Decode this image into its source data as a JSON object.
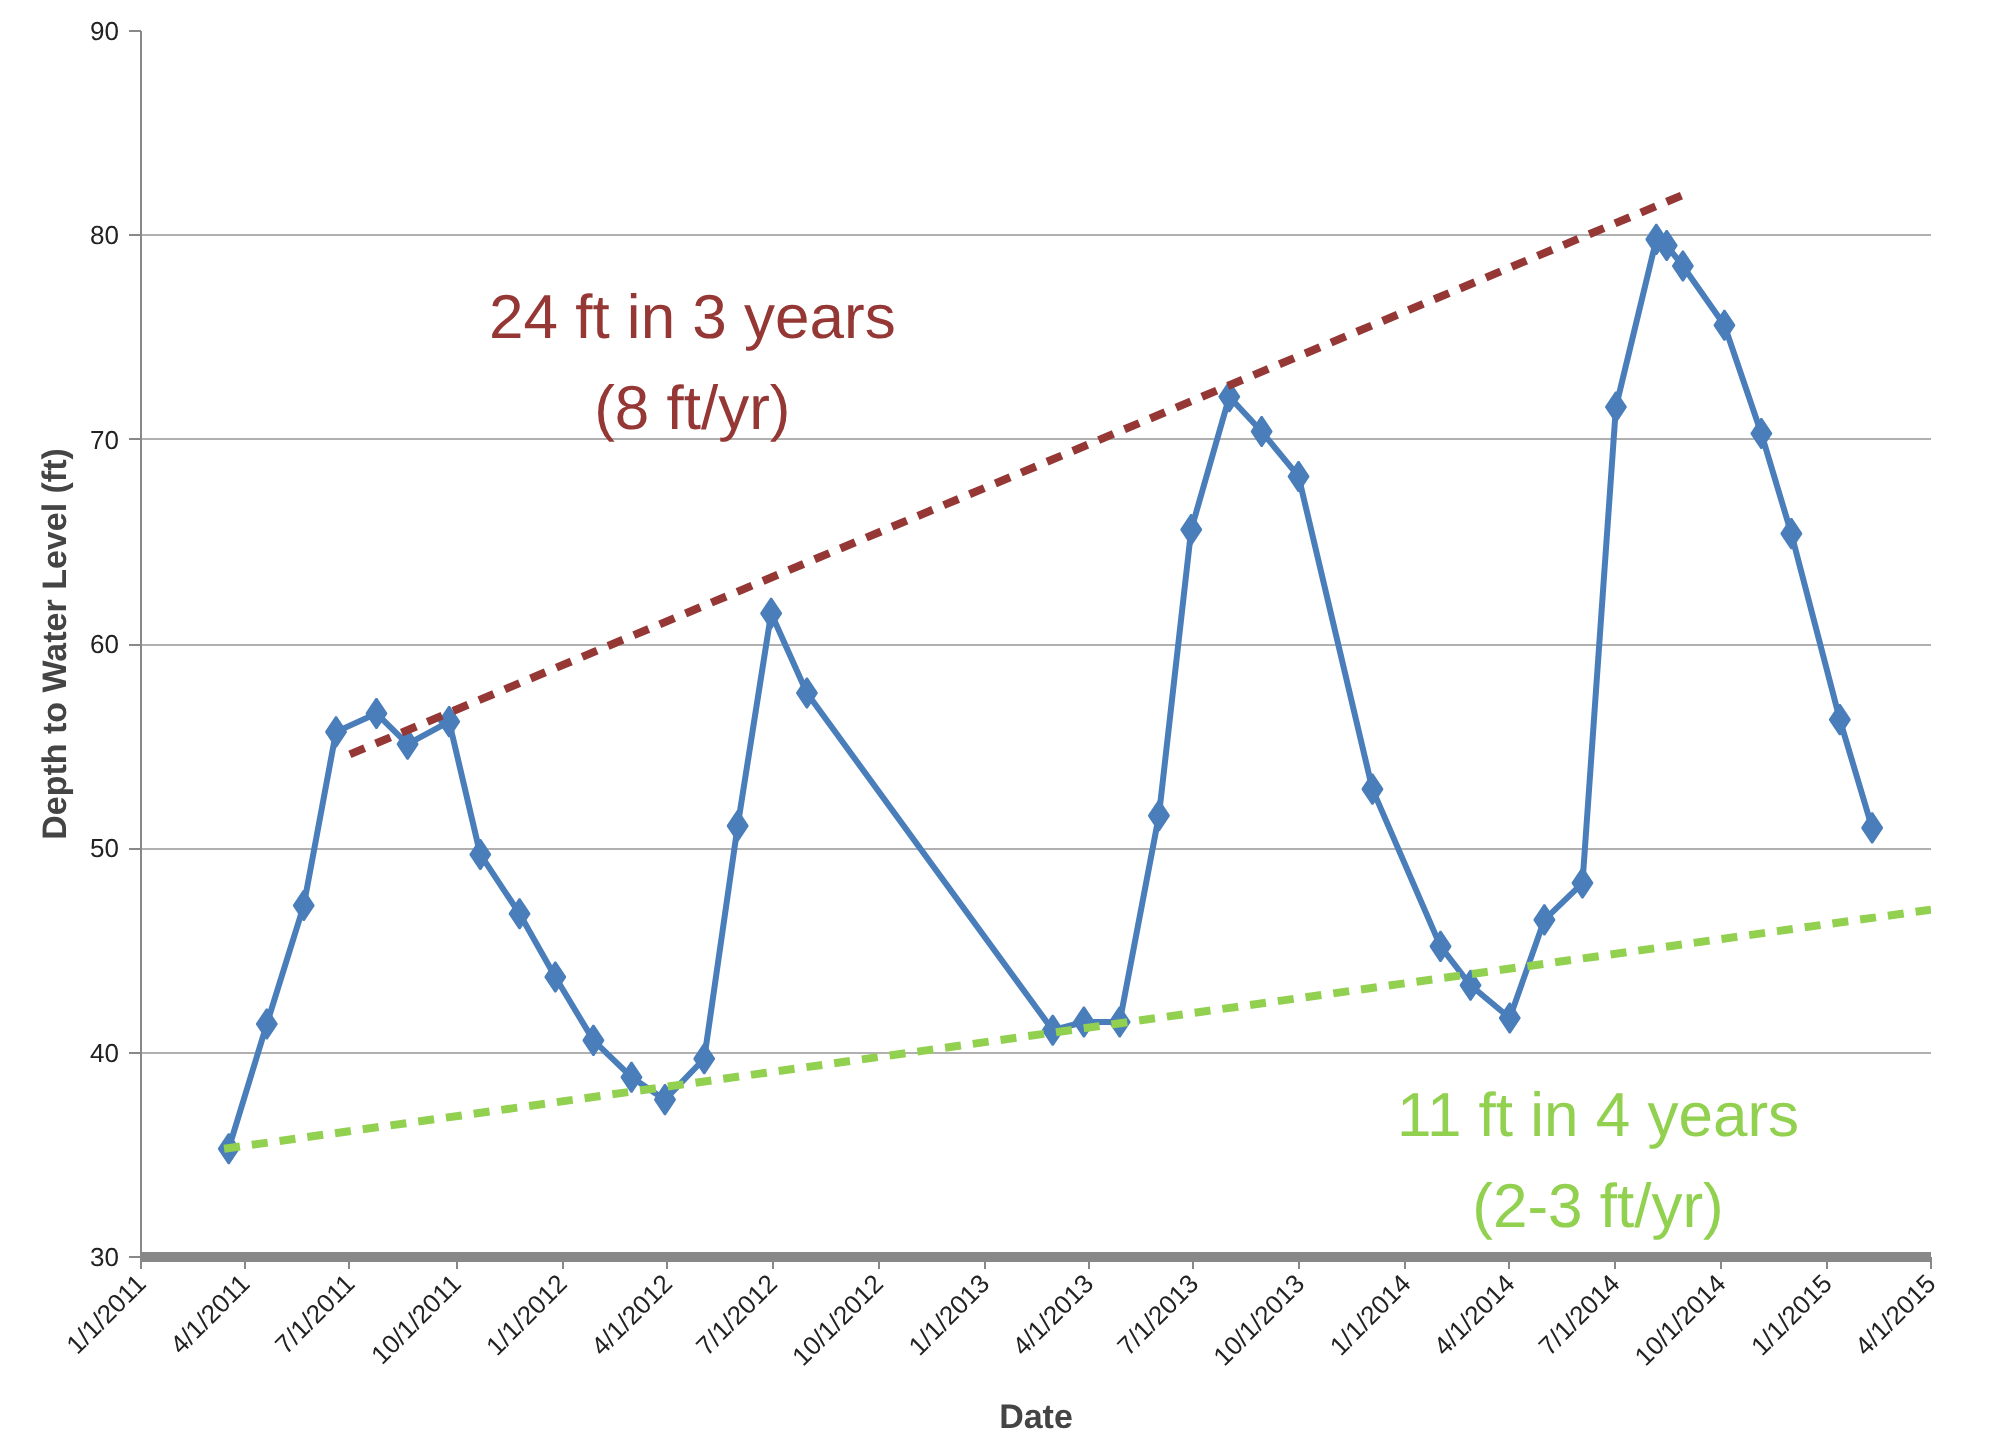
{
  "chart_data": {
    "type": "line",
    "xlabel": "Date",
    "ylabel": "Depth to Water Level (ft)",
    "xlim": [
      "2011-01-01",
      "2015-04-01"
    ],
    "xticks": [
      {
        "value": "2011-01-01",
        "label": "1/1/2011"
      },
      {
        "value": "2011-04-01",
        "label": "4/1/2011"
      },
      {
        "value": "2011-07-01",
        "label": "7/1/2011"
      },
      {
        "value": "2011-10-01",
        "label": "10/1/2011"
      },
      {
        "value": "2012-01-01",
        "label": "1/1/2012"
      },
      {
        "value": "2012-04-01",
        "label": "4/1/2012"
      },
      {
        "value": "2012-07-01",
        "label": "7/1/2012"
      },
      {
        "value": "2012-10-01",
        "label": "10/1/2012"
      },
      {
        "value": "2013-01-01",
        "label": "1/1/2013"
      },
      {
        "value": "2013-04-01",
        "label": "4/1/2013"
      },
      {
        "value": "2013-07-01",
        "label": "7/1/2013"
      },
      {
        "value": "2013-10-01",
        "label": "10/1/2013"
      },
      {
        "value": "2014-01-01",
        "label": "1/1/2014"
      },
      {
        "value": "2014-04-01",
        "label": "4/1/2014"
      },
      {
        "value": "2014-07-01",
        "label": "7/1/2014"
      },
      {
        "value": "2014-10-01",
        "label": "10/1/2014"
      },
      {
        "value": "2015-01-01",
        "label": "1/1/2015"
      },
      {
        "value": "2015-04-01",
        "label": "4/1/2015"
      }
    ],
    "ylim": [
      30,
      90
    ],
    "yticks": [
      30,
      40,
      50,
      60,
      70,
      80,
      90
    ],
    "grid": "y",
    "series": [
      {
        "color": "#4a7ebb",
        "marker": "diamond",
        "line_style": "solid",
        "x": [
          "2011-03-18",
          "2011-04-20",
          "2011-05-22",
          "2011-06-19",
          "2011-07-24",
          "2011-08-20",
          "2011-09-25",
          "2011-10-22",
          "2011-11-25",
          "2011-12-26",
          "2012-01-28",
          "2012-03-01",
          "2012-03-30",
          "2012-05-03",
          "2012-06-01",
          "2012-06-30",
          "2012-07-31",
          "2013-03-01",
          "2013-03-28",
          "2013-04-28",
          "2013-06-01",
          "2013-06-29",
          "2013-08-01",
          "2013-08-29",
          "2013-09-30",
          "2013-12-03",
          "2014-01-31",
          "2014-02-26",
          "2014-04-01",
          "2014-05-01",
          "2014-06-03",
          "2014-07-02",
          "2014-08-06",
          "2014-08-15",
          "2014-08-29",
          "2014-10-04",
          "2014-11-05",
          "2014-12-01",
          "2015-01-12",
          "2015-02-09"
        ],
        "values": [
          35.3,
          41.4,
          47.2,
          55.7,
          56.6,
          55.1,
          56.2,
          49.7,
          46.8,
          43.7,
          40.6,
          38.8,
          37.7,
          39.7,
          51.1,
          61.5,
          57.6,
          41.1,
          41.5,
          41.5,
          51.6,
          65.6,
          72.1,
          70.4,
          68.2,
          52.9,
          45.2,
          43.3,
          41.7,
          46.5,
          48.3,
          71.6,
          79.8,
          79.5,
          78.5,
          75.6,
          70.3,
          65.4,
          56.3,
          51.0
        ]
      },
      {
        "color": "#953735",
        "marker": "none",
        "line_style": "dashed",
        "x": [
          "2011-07-01",
          "2014-08-30"
        ],
        "values": [
          54.6,
          82.0
        ]
      },
      {
        "color": "#92d050",
        "marker": "none",
        "line_style": "dashed",
        "x": [
          "2011-03-14",
          "2015-04-01"
        ],
        "values": [
          35.3,
          47.0
        ]
      }
    ],
    "annotations": [
      "24 ft in 3 years\n(8 ft/yr)",
      "11 ft in 4 years\n(2-3 ft/yr)"
    ]
  }
}
